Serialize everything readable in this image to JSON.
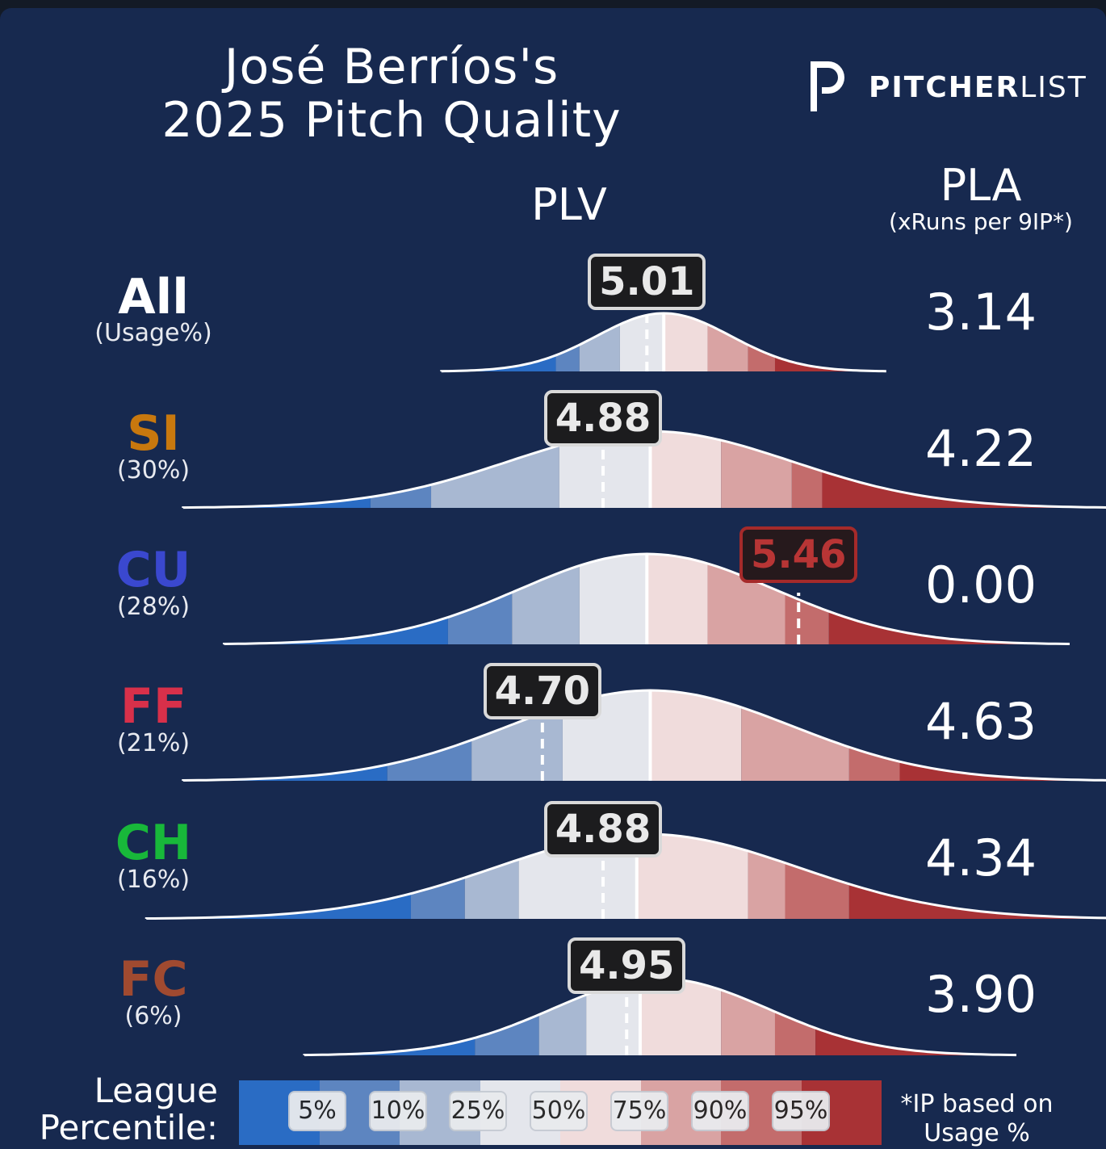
{
  "title_line1": "José Berríos's",
  "title_line2": "2025 Pitch Quality",
  "logo": {
    "text_bold": "PITCHER",
    "text_light": "LIST",
    "icon": "pitcherlist-p-logo"
  },
  "headers": {
    "plv": "PLV",
    "pla": "PLA",
    "pla_sub": "(xRuns per 9IP*)"
  },
  "legend": {
    "label_line1": "League",
    "label_line2": "Percentile:",
    "ticks": [
      "5%",
      "10%",
      "25%",
      "50%",
      "75%",
      "90%",
      "95%"
    ],
    "colors": [
      "#2a6cc4",
      "#5d85c0",
      "#a8b8d2",
      "#e4e6ec",
      "#f0dcdc",
      "#d9a3a3",
      "#c36c6c",
      "#a83235"
    ]
  },
  "footnote_line1": "*IP based on",
  "footnote_line2": "Usage %",
  "colors": {
    "All": "#ffffff",
    "SI": "#c8780e",
    "CU": "#3a48cf",
    "FF": "#d8304a",
    "CH": "#18b83a",
    "FC": "#a04a30"
  },
  "rows": [
    {
      "pitch": "All",
      "usage": "(Usage%)",
      "plv": "5.01",
      "pla": "3.14"
    },
    {
      "pitch": "SI",
      "usage": "(30%)",
      "plv": "4.88",
      "pla": "4.22"
    },
    {
      "pitch": "CU",
      "usage": "(28%)",
      "plv": "5.46",
      "pla": "0.00"
    },
    {
      "pitch": "FF",
      "usage": "(21%)",
      "plv": "4.70",
      "pla": "4.63"
    },
    {
      "pitch": "CH",
      "usage": "(16%)",
      "plv": "4.88",
      "pla": "4.34"
    },
    {
      "pitch": "FC",
      "usage": "(6%)",
      "plv": "4.95",
      "pla": "3.90"
    }
  ],
  "chart_data": {
    "type": "area",
    "title": "José Berríos's 2025 Pitch Quality",
    "xlabel": "PLV",
    "x_domain": [
      3.8,
      6.3
    ],
    "percentile_levels": [
      5,
      10,
      25,
      50,
      75,
      90,
      95
    ],
    "series": [
      {
        "name": "All",
        "mean": 5.06,
        "sd": 0.2,
        "percentiles": [
          4.74,
          4.81,
          4.93,
          5.06,
          5.19,
          5.31,
          5.39
        ],
        "plv": 5.01,
        "highlight": false
      },
      {
        "name": "SI",
        "mean": 5.02,
        "sd": 0.42,
        "percentiles": [
          4.19,
          4.37,
          4.75,
          5.02,
          5.23,
          5.44,
          5.53
        ],
        "plv": 4.88,
        "highlight": false
      },
      {
        "name": "CU",
        "mean": 5.01,
        "sd": 0.38,
        "percentiles": [
          4.42,
          4.61,
          4.81,
          5.01,
          5.19,
          5.42,
          5.55
        ],
        "plv": 5.46,
        "highlight": true
      },
      {
        "name": "FF",
        "mean": 5.02,
        "sd": 0.42,
        "percentiles": [
          4.24,
          4.49,
          4.76,
          5.02,
          5.29,
          5.61,
          5.76
        ],
        "plv": 4.7,
        "highlight": false
      },
      {
        "name": "CH",
        "mean": 5.01,
        "sd": 0.45,
        "percentiles": [
          4.31,
          4.47,
          4.63,
          4.98,
          5.31,
          5.42,
          5.61
        ],
        "plv": 4.88,
        "highlight": false
      },
      {
        "name": "FC",
        "mean": 5.05,
        "sd": 0.32,
        "percentiles": [
          4.5,
          4.69,
          4.83,
          4.99,
          5.23,
          5.39,
          5.51
        ],
        "plv": 4.95,
        "highlight": false
      }
    ]
  }
}
